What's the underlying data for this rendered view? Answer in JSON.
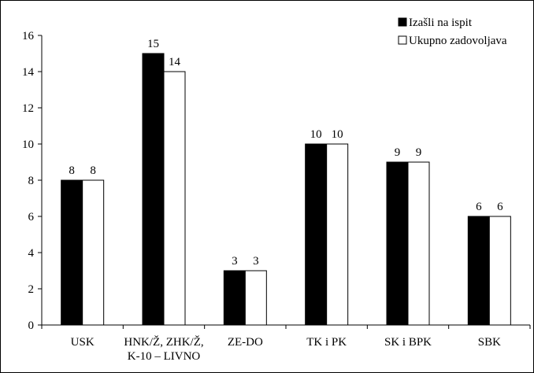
{
  "chart_data": {
    "type": "bar",
    "title": "",
    "xlabel": "",
    "ylabel": "",
    "ylim": [
      0,
      16
    ],
    "yticks": [
      0,
      2,
      4,
      6,
      8,
      10,
      12,
      14,
      16
    ],
    "grid": false,
    "legend_position": "top-right",
    "categories": [
      [
        "USK"
      ],
      [
        "HNK/Ž, ZHK/Ž,",
        "K-10 – LIVNO"
      ],
      [
        "ZE-DO"
      ],
      [
        "TK i PK"
      ],
      [
        "SK i BPK"
      ],
      [
        "SBK"
      ]
    ],
    "series": [
      {
        "name": "Izašli na ispit",
        "color": "#000000",
        "values": [
          8,
          15,
          3,
          10,
          9,
          6
        ]
      },
      {
        "name": "Ukupno zadovoljava",
        "color": "#ffffff",
        "values": [
          8,
          14,
          3,
          10,
          9,
          6
        ]
      }
    ]
  }
}
